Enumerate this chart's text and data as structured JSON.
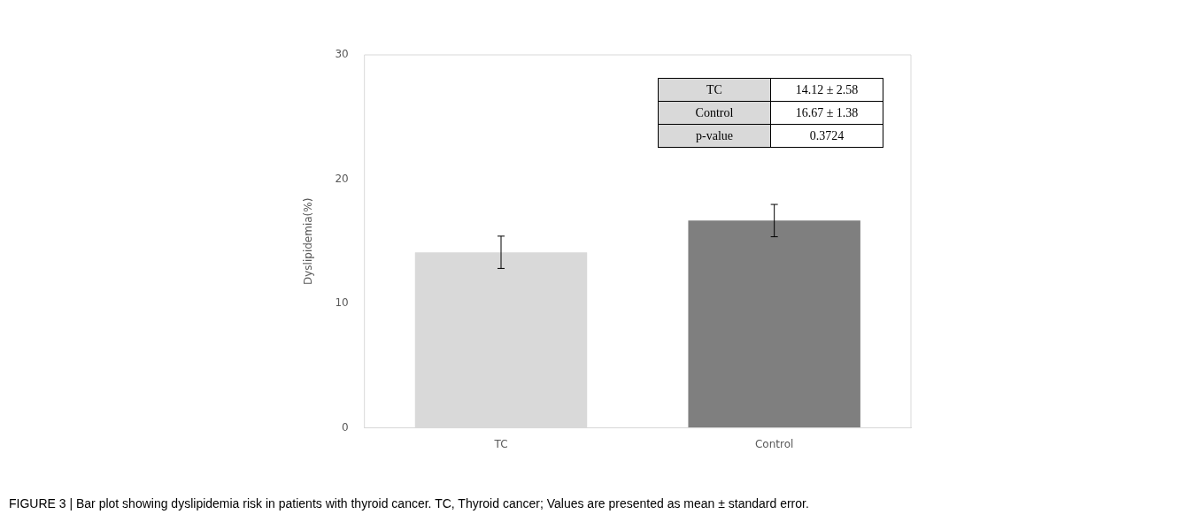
{
  "chart_data": {
    "type": "bar",
    "ylabel": "Dyslipidemia(%)",
    "categories": [
      "TC",
      "Control"
    ],
    "values": [
      14.12,
      16.67
    ],
    "errors": [
      1.3,
      1.3
    ],
    "colors": [
      "#d9d9d9",
      "#7f7f7f"
    ],
    "ylim": [
      0,
      30
    ],
    "yticks": [
      0,
      10,
      20,
      30
    ],
    "grid": false,
    "legend": false,
    "annotations": [
      "14.12 ± 2.58",
      "16.67 ± 1.38",
      "p-value",
      "0.3724",
      "FIGURE 3 | Bar plot showing dyslipidemia risk in patients with thyroid cancer. TC, Thyroid cancer; Values are presented as mean ± standard error."
    ]
  }
}
